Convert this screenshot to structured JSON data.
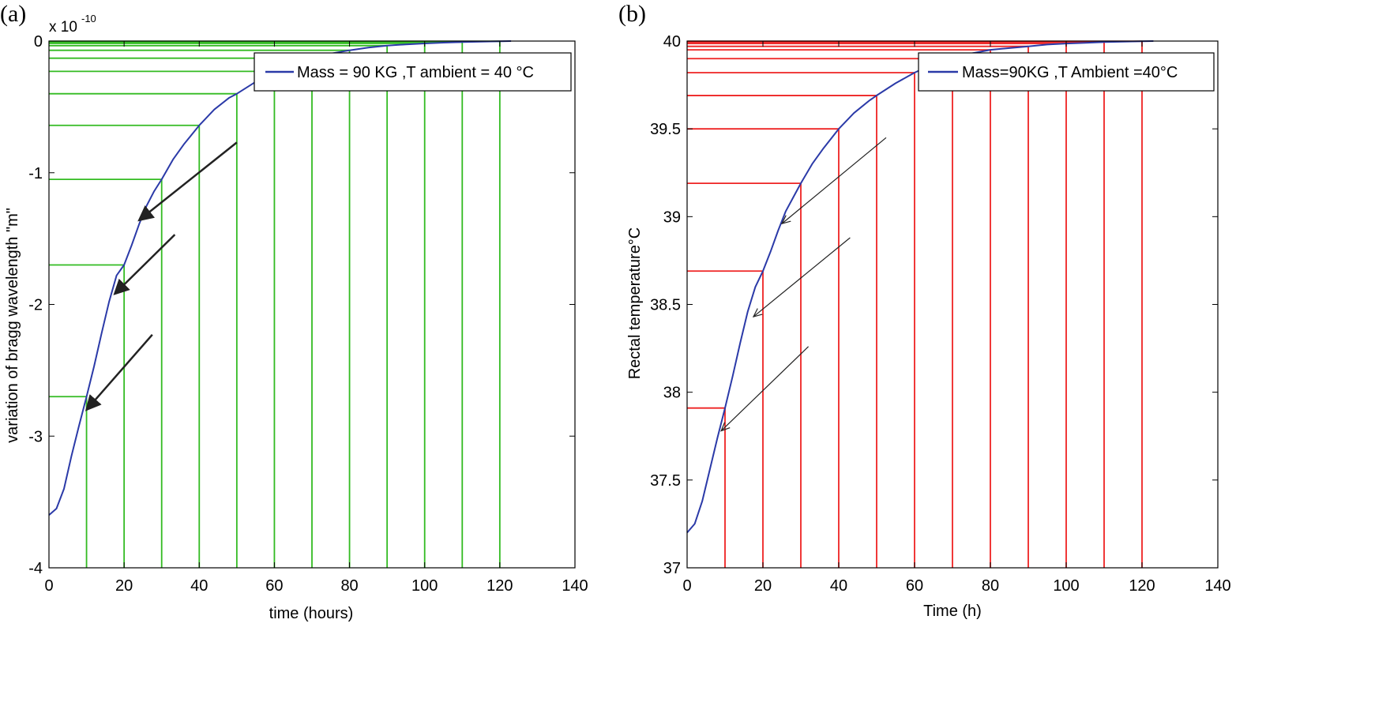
{
  "chart_data": [
    {
      "type": "line",
      "panel_label": "(a)",
      "xlabel": "time (hours)",
      "ylabel": "variation of  bragg wavelength  \"m\"",
      "exponent_label": {
        "base": "x 10",
        "power": "-10"
      },
      "xlim": [
        0,
        140
      ],
      "ylim": [
        -4,
        0
      ],
      "xticks": [
        0,
        20,
        40,
        60,
        80,
        100,
        120,
        140
      ],
      "yticks": [
        -4,
        -3,
        -2,
        -1,
        0
      ],
      "ytick_labels": [
        "-4",
        "-3",
        "-2",
        "-1",
        "0"
      ],
      "grid_color": "#33bb22",
      "line_color": "#2b3aa8",
      "series": [
        {
          "name": "Mass = 90 KG   ,T ambient = 40 °C",
          "x": [
            0,
            2,
            4,
            6,
            8,
            10,
            12,
            14,
            16,
            18,
            20,
            22,
            24,
            26,
            28,
            30,
            33,
            36,
            40,
            44,
            48,
            50,
            55,
            60,
            65,
            70,
            75,
            80,
            85,
            90,
            95,
            100,
            105,
            110,
            115,
            120,
            123
          ],
          "y": [
            -3.6,
            -3.55,
            -3.4,
            -3.15,
            -2.92,
            -2.7,
            -2.47,
            -2.22,
            -1.98,
            -1.78,
            -1.7,
            -1.55,
            -1.39,
            -1.25,
            -1.14,
            -1.05,
            -0.9,
            -0.78,
            -0.64,
            -0.52,
            -0.43,
            -0.4,
            -0.31,
            -0.23,
            -0.17,
            -0.13,
            -0.095,
            -0.07,
            -0.05,
            -0.035,
            -0.025,
            -0.018,
            -0.012,
            -0.008,
            -0.005,
            -0.002,
            0
          ]
        }
      ],
      "drop_lines": {
        "x": [
          10,
          20,
          30,
          40,
          50,
          60,
          70,
          80,
          90,
          100,
          110,
          120
        ],
        "y": [
          -2.7,
          -1.7,
          -1.05,
          -0.64,
          -0.4,
          -0.23,
          -0.13,
          -0.07,
          -0.035,
          -0.018,
          -0.008,
          -0.002
        ]
      },
      "arrows": [
        {
          "from": [
            50,
            -0.77
          ],
          "to": [
            24,
            -1.36
          ]
        },
        {
          "from": [
            33.5,
            -1.47
          ],
          "to": [
            17.5,
            -1.92
          ]
        },
        {
          "from": [
            27.5,
            -2.23
          ],
          "to": [
            10,
            -2.8
          ]
        }
      ]
    },
    {
      "type": "line",
      "panel_label": "(b)",
      "xlabel": "Time (h)",
      "ylabel": "Rectal temperature°C",
      "xlim": [
        0,
        140
      ],
      "ylim": [
        37,
        40
      ],
      "xticks": [
        0,
        20,
        40,
        60,
        80,
        100,
        120,
        140
      ],
      "yticks": [
        37,
        37.5,
        38,
        38.5,
        39,
        39.5,
        40
      ],
      "ytick_labels": [
        "37",
        "37.5",
        "38",
        "38.5",
        "39",
        "39.5",
        "40"
      ],
      "grid_color": "#ee2222",
      "line_color": "#2b3aa8",
      "series": [
        {
          "name": "Mass=90KG   ,T Ambient =40°C",
          "x": [
            0,
            2,
            4,
            6,
            8,
            10,
            12,
            14,
            16,
            18,
            20,
            22,
            24,
            26,
            28,
            30,
            33,
            36,
            40,
            44,
            48,
            50,
            55,
            60,
            65,
            70,
            75,
            80,
            85,
            90,
            95,
            100,
            105,
            110,
            115,
            120,
            123
          ],
          "y": [
            37.2,
            37.25,
            37.38,
            37.56,
            37.74,
            37.91,
            38.09,
            38.28,
            38.46,
            38.6,
            38.69,
            38.8,
            38.92,
            39.03,
            39.11,
            39.19,
            39.3,
            39.39,
            39.5,
            39.59,
            39.66,
            39.69,
            39.76,
            39.82,
            39.87,
            39.9,
            39.93,
            39.95,
            39.96,
            39.97,
            39.98,
            39.986,
            39.99,
            39.994,
            39.997,
            39.999,
            40
          ]
        }
      ],
      "drop_lines": {
        "x": [
          10,
          20,
          30,
          40,
          50,
          60,
          70,
          80,
          90,
          100,
          110,
          120
        ],
        "y": [
          37.91,
          38.69,
          39.19,
          39.5,
          39.69,
          39.82,
          39.9,
          39.95,
          39.97,
          39.986,
          39.994,
          39.999
        ]
      },
      "arrows": [
        {
          "from": [
            52.5,
            39.45
          ],
          "to": [
            25,
            38.96
          ]
        },
        {
          "from": [
            43,
            38.88
          ],
          "to": [
            17.5,
            38.43
          ]
        },
        {
          "from": [
            32,
            38.26
          ],
          "to": [
            9,
            37.78
          ]
        }
      ]
    }
  ]
}
